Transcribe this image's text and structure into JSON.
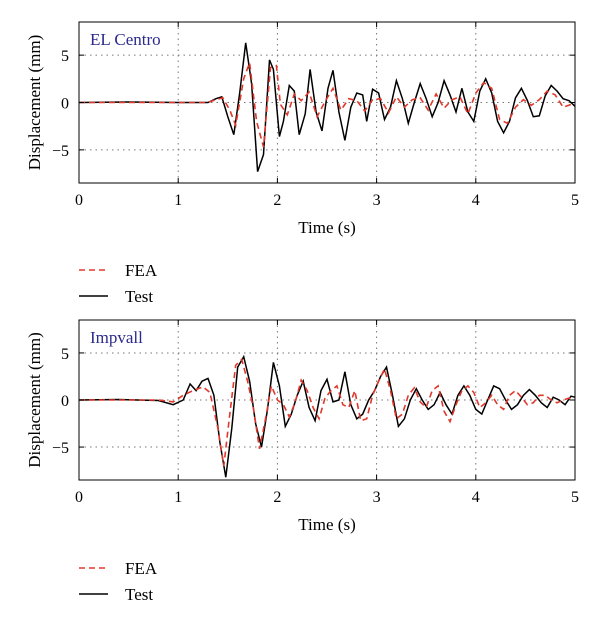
{
  "chart_data": [
    {
      "type": "line",
      "title": "EL Centro",
      "xlabel": "Time (s)",
      "ylabel": "Displacement (mm)",
      "xlim": [
        0,
        5
      ],
      "ylim": [
        -8.5,
        8.5
      ],
      "xticks": [
        0,
        1,
        2,
        3,
        4,
        5
      ],
      "yticks": [
        -5,
        0,
        5
      ],
      "xtick_labels": [
        "0",
        "1",
        "2",
        "3",
        "4",
        "5"
      ],
      "ytick_labels": [
        "−5",
        "0",
        "5"
      ],
      "grid": true,
      "legend_position": "below",
      "series": [
        {
          "name": "FEA",
          "color": "#e0382b",
          "style": "dashed",
          "points": [
            [
              0,
              0
            ],
            [
              0.5,
              0
            ],
            [
              1.0,
              0
            ],
            [
              1.3,
              0
            ],
            [
              1.38,
              0.3
            ],
            [
              1.45,
              0.5
            ],
            [
              1.52,
              -0.8
            ],
            [
              1.58,
              -2.4
            ],
            [
              1.66,
              2.5
            ],
            [
              1.72,
              4.2
            ],
            [
              1.79,
              -2.0
            ],
            [
              1.86,
              -4.7
            ],
            [
              1.93,
              3.7
            ],
            [
              1.99,
              3.9
            ],
            [
              2.03,
              -0.2
            ],
            [
              2.1,
              -1.3
            ],
            [
              2.17,
              0.9
            ],
            [
              2.24,
              0.2
            ],
            [
              2.32,
              1.1
            ],
            [
              2.4,
              -1.5
            ],
            [
              2.48,
              0.1
            ],
            [
              2.56,
              1.5
            ],
            [
              2.64,
              -0.8
            ],
            [
              2.72,
              0.4
            ],
            [
              2.8,
              0.2
            ],
            [
              2.88,
              -0.9
            ],
            [
              2.96,
              0.3
            ],
            [
              3.04,
              0.4
            ],
            [
              3.12,
              -1.1
            ],
            [
              3.2,
              0.6
            ],
            [
              3.28,
              -0.5
            ],
            [
              3.36,
              0.3
            ],
            [
              3.44,
              0.5
            ],
            [
              3.52,
              -0.8
            ],
            [
              3.6,
              0.9
            ],
            [
              3.68,
              -0.6
            ],
            [
              3.76,
              0.3
            ],
            [
              3.84,
              0.6
            ],
            [
              3.92,
              -1.2
            ],
            [
              4.0,
              1.0
            ],
            [
              4.08,
              2.1
            ],
            [
              4.16,
              1.5
            ],
            [
              4.24,
              -1.8
            ],
            [
              4.32,
              -2.2
            ],
            [
              4.4,
              -0.5
            ],
            [
              4.48,
              0.3
            ],
            [
              4.56,
              -0.3
            ],
            [
              4.64,
              0.3
            ],
            [
              4.72,
              1.2
            ],
            [
              4.8,
              0.8
            ],
            [
              4.88,
              -0.5
            ],
            [
              4.96,
              -0.2
            ],
            [
              5.0,
              -0.1
            ]
          ]
        },
        {
          "name": "Test",
          "color": "#000000",
          "style": "solid",
          "points": [
            [
              0,
              0
            ],
            [
              0.5,
              0.05
            ],
            [
              1.0,
              0
            ],
            [
              1.3,
              0
            ],
            [
              1.38,
              0.4
            ],
            [
              1.44,
              0.6
            ],
            [
              1.5,
              -1.5
            ],
            [
              1.56,
              -3.4
            ],
            [
              1.62,
              1.0
            ],
            [
              1.68,
              6.3
            ],
            [
              1.74,
              2.0
            ],
            [
              1.8,
              -7.3
            ],
            [
              1.86,
              -5.5
            ],
            [
              1.92,
              4.5
            ],
            [
              1.96,
              3.5
            ],
            [
              2.02,
              -3.6
            ],
            [
              2.06,
              -2.0
            ],
            [
              2.12,
              1.8
            ],
            [
              2.17,
              1.2
            ],
            [
              2.22,
              -3.4
            ],
            [
              2.28,
              -1.2
            ],
            [
              2.33,
              3.5
            ],
            [
              2.39,
              -1.0
            ],
            [
              2.45,
              -3.0
            ],
            [
              2.51,
              1.5
            ],
            [
              2.56,
              3.4
            ],
            [
              2.62,
              -1.0
            ],
            [
              2.68,
              -4.0
            ],
            [
              2.74,
              -0.5
            ],
            [
              2.8,
              1.0
            ],
            [
              2.86,
              0.8
            ],
            [
              2.9,
              -2.0
            ],
            [
              2.96,
              1.4
            ],
            [
              3.02,
              1.0
            ],
            [
              3.08,
              -1.8
            ],
            [
              3.14,
              -0.5
            ],
            [
              3.2,
              2.3
            ],
            [
              3.26,
              0.4
            ],
            [
              3.32,
              -2.2
            ],
            [
              3.38,
              0.0
            ],
            [
              3.44,
              2.0
            ],
            [
              3.5,
              0.4
            ],
            [
              3.56,
              -1.5
            ],
            [
              3.62,
              0.0
            ],
            [
              3.68,
              2.3
            ],
            [
              3.74,
              0.8
            ],
            [
              3.8,
              -1.0
            ],
            [
              3.86,
              1.5
            ],
            [
              3.92,
              -1.0
            ],
            [
              3.98,
              -2.0
            ],
            [
              4.04,
              1.2
            ],
            [
              4.1,
              2.5
            ],
            [
              4.16,
              1.0
            ],
            [
              4.22,
              -2.0
            ],
            [
              4.28,
              -3.2
            ],
            [
              4.34,
              -2.0
            ],
            [
              4.4,
              0.5
            ],
            [
              4.46,
              1.5
            ],
            [
              4.52,
              0.2
            ],
            [
              4.58,
              -1.5
            ],
            [
              4.64,
              -1.4
            ],
            [
              4.7,
              0.7
            ],
            [
              4.76,
              1.8
            ],
            [
              4.82,
              1.2
            ],
            [
              4.88,
              0.4
            ],
            [
              4.94,
              0.2
            ],
            [
              5.0,
              -0.4
            ]
          ]
        }
      ]
    },
    {
      "type": "line",
      "title": "Impvall",
      "xlabel": "Time (s)",
      "ylabel": "Displacement (mm)",
      "xlim": [
        0,
        5
      ],
      "ylim": [
        -8.5,
        8.5
      ],
      "xticks": [
        0,
        1,
        2,
        3,
        4,
        5
      ],
      "yticks": [
        -5,
        0,
        5
      ],
      "xtick_labels": [
        "0",
        "1",
        "2",
        "3",
        "4",
        "5"
      ],
      "ytick_labels": [
        "−5",
        "0",
        "5"
      ],
      "grid": true,
      "legend_position": "below",
      "series": [
        {
          "name": "FEA",
          "color": "#e0382b",
          "style": "dashed",
          "points": [
            [
              0,
              0
            ],
            [
              0.4,
              0
            ],
            [
              0.8,
              0
            ],
            [
              0.95,
              -0.2
            ],
            [
              1.05,
              0.5
            ],
            [
              1.15,
              1.0
            ],
            [
              1.25,
              1.4
            ],
            [
              1.32,
              0.8
            ],
            [
              1.4,
              -3.0
            ],
            [
              1.46,
              -7.0
            ],
            [
              1.52,
              -1.5
            ],
            [
              1.58,
              3.7
            ],
            [
              1.64,
              4.3
            ],
            [
              1.7,
              2.0
            ],
            [
              1.76,
              -1.0
            ],
            [
              1.82,
              -5.2
            ],
            [
              1.88,
              -2.0
            ],
            [
              1.94,
              1.5
            ],
            [
              2.0,
              0.0
            ],
            [
              2.06,
              -0.5
            ],
            [
              2.12,
              -1.8
            ],
            [
              2.18,
              -0.2
            ],
            [
              2.24,
              2.1
            ],
            [
              2.3,
              1.0
            ],
            [
              2.36,
              -0.8
            ],
            [
              2.42,
              -2.0
            ],
            [
              2.48,
              0.2
            ],
            [
              2.54,
              1.0
            ],
            [
              2.6,
              1.5
            ],
            [
              2.66,
              -0.5
            ],
            [
              2.72,
              -0.8
            ],
            [
              2.78,
              1.0
            ],
            [
              2.84,
              -2.2
            ],
            [
              2.9,
              -2.0
            ],
            [
              2.96,
              0.5
            ],
            [
              3.02,
              2.0
            ],
            [
              3.08,
              3.3
            ],
            [
              3.14,
              1.0
            ],
            [
              3.2,
              -2.0
            ],
            [
              3.26,
              -1.5
            ],
            [
              3.32,
              0.5
            ],
            [
              3.38,
              1.3
            ],
            [
              3.44,
              -0.2
            ],
            [
              3.5,
              -0.8
            ],
            [
              3.56,
              1.0
            ],
            [
              3.62,
              1.5
            ],
            [
              3.68,
              -1.2
            ],
            [
              3.74,
              -2.3
            ],
            [
              3.8,
              -0.5
            ],
            [
              3.86,
              1.0
            ],
            [
              3.92,
              1.5
            ],
            [
              3.98,
              0.8
            ],
            [
              4.04,
              -0.8
            ],
            [
              4.1,
              -0.3
            ],
            [
              4.16,
              0.5
            ],
            [
              4.22,
              -0.5
            ],
            [
              4.28,
              -1.0
            ],
            [
              4.34,
              0.5
            ],
            [
              4.4,
              1.0
            ],
            [
              4.46,
              0.3
            ],
            [
              4.52,
              -0.5
            ],
            [
              4.58,
              -0.3
            ],
            [
              4.64,
              0.5
            ],
            [
              4.7,
              0.5
            ],
            [
              4.76,
              0.0
            ],
            [
              4.82,
              -0.3
            ],
            [
              4.88,
              0.0
            ],
            [
              4.94,
              0.2
            ],
            [
              5.0,
              0.1
            ]
          ]
        },
        {
          "name": "Test",
          "color": "#000000",
          "style": "solid",
          "points": [
            [
              0,
              0
            ],
            [
              0.4,
              0.05
            ],
            [
              0.8,
              -0.05
            ],
            [
              0.95,
              -0.5
            ],
            [
              1.05,
              0.0
            ],
            [
              1.12,
              1.7
            ],
            [
              1.18,
              1.0
            ],
            [
              1.24,
              2.0
            ],
            [
              1.3,
              2.3
            ],
            [
              1.36,
              0.5
            ],
            [
              1.42,
              -4.5
            ],
            [
              1.48,
              -8.2
            ],
            [
              1.54,
              -3.0
            ],
            [
              1.6,
              3.5
            ],
            [
              1.66,
              4.6
            ],
            [
              1.72,
              2.0
            ],
            [
              1.78,
              -2.5
            ],
            [
              1.84,
              -5.0
            ],
            [
              1.9,
              -1.0
            ],
            [
              1.96,
              4.0
            ],
            [
              2.02,
              1.5
            ],
            [
              2.08,
              -2.8
            ],
            [
              2.14,
              -1.5
            ],
            [
              2.2,
              0.5
            ],
            [
              2.26,
              2.0
            ],
            [
              2.32,
              -0.8
            ],
            [
              2.38,
              -2.2
            ],
            [
              2.44,
              1.0
            ],
            [
              2.5,
              2.2
            ],
            [
              2.56,
              -0.2
            ],
            [
              2.62,
              0.0
            ],
            [
              2.68,
              3.0
            ],
            [
              2.74,
              -0.5
            ],
            [
              2.8,
              -2.0
            ],
            [
              2.86,
              -1.5
            ],
            [
              2.92,
              0.0
            ],
            [
              2.98,
              1.0
            ],
            [
              3.04,
              2.5
            ],
            [
              3.1,
              3.5
            ],
            [
              3.16,
              0.5
            ],
            [
              3.22,
              -2.8
            ],
            [
              3.28,
              -2.0
            ],
            [
              3.34,
              0.0
            ],
            [
              3.4,
              1.2
            ],
            [
              3.46,
              0.0
            ],
            [
              3.52,
              -1.0
            ],
            [
              3.58,
              -0.5
            ],
            [
              3.64,
              0.8
            ],
            [
              3.7,
              -0.5
            ],
            [
              3.76,
              -1.5
            ],
            [
              3.82,
              0.5
            ],
            [
              3.88,
              1.5
            ],
            [
              3.94,
              0.5
            ],
            [
              4.0,
              -1.0
            ],
            [
              4.06,
              -1.5
            ],
            [
              4.12,
              0.0
            ],
            [
              4.18,
              1.5
            ],
            [
              4.24,
              1.2
            ],
            [
              4.3,
              0.0
            ],
            [
              4.36,
              -1.0
            ],
            [
              4.42,
              -0.5
            ],
            [
              4.48,
              0.5
            ],
            [
              4.54,
              1.1
            ],
            [
              4.6,
              0.5
            ],
            [
              4.66,
              -0.3
            ],
            [
              4.72,
              -0.8
            ],
            [
              4.78,
              0.3
            ],
            [
              4.84,
              0.0
            ],
            [
              4.9,
              -0.5
            ],
            [
              4.96,
              0.4
            ],
            [
              5.0,
              0.3
            ]
          ]
        }
      ]
    }
  ]
}
